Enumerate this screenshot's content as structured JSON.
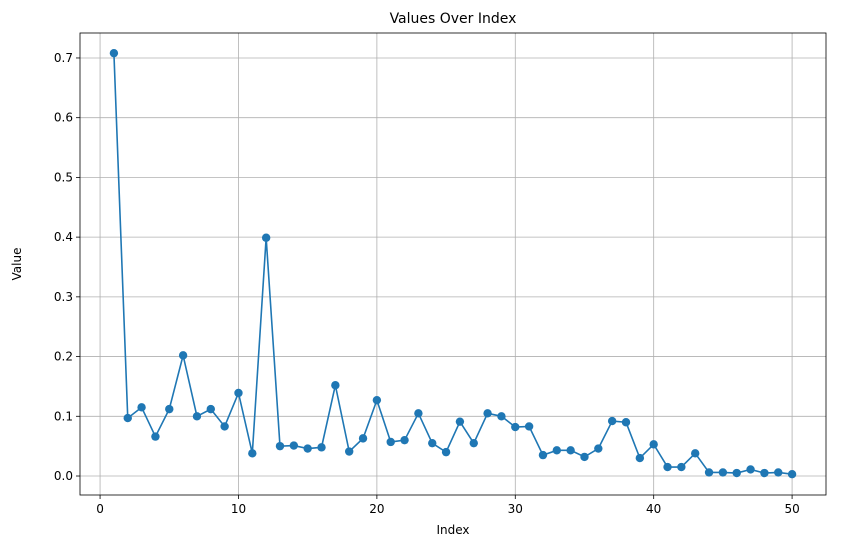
{
  "chart_data": {
    "type": "line",
    "title": "Values Over Index",
    "xlabel": "Index",
    "ylabel": "Value",
    "xlim": [
      -1.45,
      52.45
    ],
    "ylim": [
      -0.0318,
      0.7418
    ],
    "xticks": [
      0,
      10,
      20,
      30,
      40,
      50
    ],
    "yticks": [
      0.0,
      0.1,
      0.2,
      0.3,
      0.4,
      0.5,
      0.6,
      0.7
    ],
    "ytick_labels": [
      "0.0",
      "0.1",
      "0.2",
      "0.3",
      "0.4",
      "0.5",
      "0.6",
      "0.7"
    ],
    "grid": true,
    "marker": "circle",
    "color": "#1f77b4",
    "series": [
      {
        "x": [
          1,
          2,
          3,
          4,
          5,
          6,
          7,
          8,
          9,
          10,
          11,
          12,
          13,
          14,
          15,
          16,
          17,
          18,
          19,
          20,
          21,
          22,
          23,
          24,
          25,
          26,
          27,
          28,
          29,
          30,
          31,
          32,
          33,
          34,
          35,
          36,
          37,
          38,
          39,
          40,
          41,
          42,
          43,
          44,
          45,
          46,
          47,
          48,
          49,
          50
        ],
        "values": [
          0.708,
          0.097,
          0.115,
          0.066,
          0.112,
          0.202,
          0.1,
          0.112,
          0.083,
          0.139,
          0.038,
          0.399,
          0.05,
          0.051,
          0.046,
          0.048,
          0.152,
          0.041,
          0.063,
          0.127,
          0.057,
          0.06,
          0.105,
          0.055,
          0.04,
          0.091,
          0.055,
          0.105,
          0.1,
          0.082,
          0.083,
          0.035,
          0.043,
          0.043,
          0.032,
          0.046,
          0.092,
          0.09,
          0.03,
          0.053,
          0.015,
          0.015,
          0.038,
          0.006,
          0.006,
          0.005,
          0.011,
          0.005,
          0.006,
          0.003
        ]
      }
    ]
  }
}
